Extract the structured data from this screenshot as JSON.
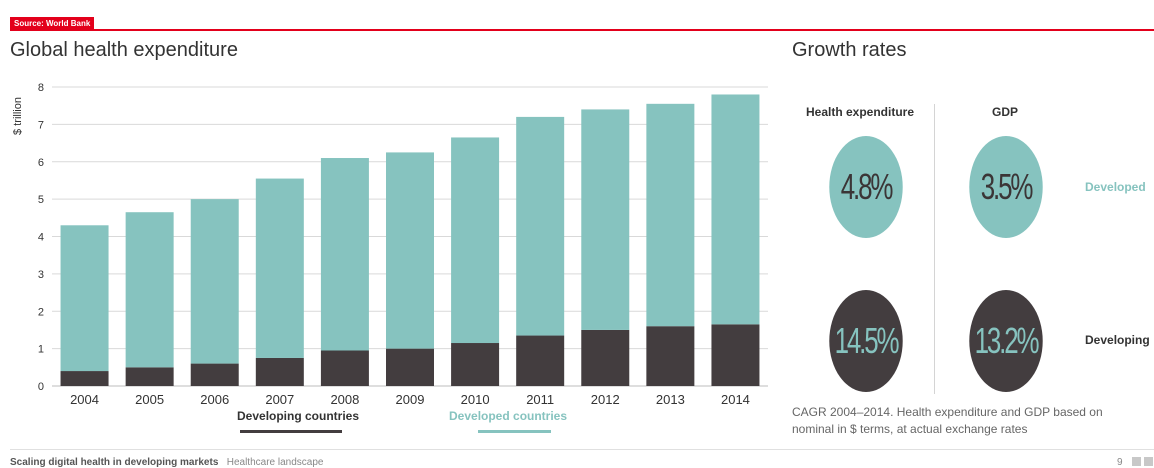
{
  "source_tag": "Source: World Bank",
  "chart_data": {
    "type": "bar",
    "stacked": true,
    "title": "Global health expenditure",
    "ylabel": "$ trillion",
    "xlabel": "",
    "ylim": [
      0,
      8
    ],
    "yticks": [
      0,
      1,
      2,
      3,
      4,
      5,
      6,
      7,
      8
    ],
    "grid": true,
    "legend_placement": "bottom",
    "categories": [
      "2004",
      "2005",
      "2006",
      "2007",
      "2008",
      "2009",
      "2010",
      "2011",
      "2012",
      "2013",
      "2014"
    ],
    "series": [
      {
        "name": "Developing countries",
        "color": "#433d3f",
        "values": [
          0.4,
          0.5,
          0.6,
          0.75,
          0.95,
          1.0,
          1.15,
          1.35,
          1.5,
          1.6,
          1.65
        ]
      },
      {
        "name": "Developed countries",
        "color": "#86c3bf",
        "values": [
          3.9,
          4.15,
          4.4,
          4.8,
          5.15,
          5.25,
          5.5,
          5.85,
          5.9,
          5.95,
          6.15
        ]
      }
    ]
  },
  "growth": {
    "title": "Growth rates",
    "headers": {
      "health": "Health expenditure",
      "gdp": "GDP"
    },
    "developed": {
      "label": "Developed",
      "health": "4.8%",
      "gdp": "3.5%"
    },
    "developing": {
      "label": "Developing",
      "health": "14.5%",
      "gdp": "13.2%"
    },
    "caption": "CAGR 2004–2014. Health expenditure and GDP based on nominal in $ terms, at actual exchange rates"
  },
  "footer": {
    "report": "Scaling digital health in developing markets",
    "section": "Healthcare landscape",
    "page": "9"
  },
  "colors": {
    "accent": "#e3001b",
    "developed": "#86c3bf",
    "developing": "#433d3f"
  }
}
